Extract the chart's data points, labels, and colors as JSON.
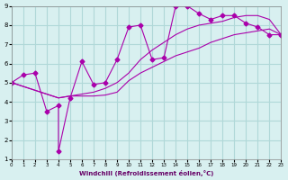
{
  "xlabel": "Windchill (Refroidissement éolien,°C)",
  "background_color": "#d8f0f0",
  "grid_color": "#b0d8d8",
  "line_color": "#aa00aa",
  "xlim": [
    0,
    23
  ],
  "ylim": [
    1,
    9
  ],
  "xticks": [
    0,
    1,
    2,
    3,
    4,
    5,
    6,
    7,
    8,
    9,
    10,
    11,
    12,
    13,
    14,
    15,
    16,
    17,
    18,
    19,
    20,
    21,
    22,
    23
  ],
  "yticks": [
    1,
    2,
    3,
    4,
    5,
    6,
    7,
    8,
    9
  ],
  "series": [
    {
      "x": [
        0,
        1,
        2,
        3,
        4,
        4,
        5,
        6,
        7,
        8,
        9,
        10,
        11,
        12,
        13,
        14,
        15,
        16,
        17,
        18,
        19,
        20,
        21,
        22,
        23
      ],
      "y": [
        5.0,
        5.4,
        5.5,
        3.5,
        3.8,
        1.4,
        4.2,
        6.1,
        4.9,
        5.0,
        6.2,
        7.9,
        8.0,
        6.2,
        6.3,
        9.0,
        9.0,
        8.6,
        8.3,
        8.5,
        8.5,
        8.1,
        7.9,
        7.5,
        7.5
      ],
      "marker": "D",
      "markersize": 2.5
    },
    {
      "x": [
        0,
        4,
        5,
        6,
        7,
        8,
        9,
        10,
        11,
        12,
        13,
        14,
        15,
        16,
        17,
        18,
        19,
        20,
        21,
        22,
        23
      ],
      "y": [
        5.0,
        4.2,
        4.3,
        4.3,
        4.3,
        4.35,
        4.5,
        5.1,
        5.5,
        5.8,
        6.1,
        6.4,
        6.6,
        6.8,
        7.1,
        7.3,
        7.5,
        7.6,
        7.7,
        7.8,
        7.5
      ],
      "marker": "",
      "markersize": 0
    },
    {
      "x": [
        0,
        4,
        5,
        6,
        7,
        8,
        9,
        10,
        11,
        12,
        13,
        14,
        15,
        16,
        17,
        18,
        19,
        20,
        21,
        22,
        23
      ],
      "y": [
        5.0,
        4.2,
        4.3,
        4.4,
        4.5,
        4.7,
        5.0,
        5.5,
        6.2,
        6.7,
        7.1,
        7.5,
        7.8,
        8.0,
        8.1,
        8.2,
        8.4,
        8.5,
        8.5,
        8.3,
        7.5
      ],
      "marker": "",
      "markersize": 0
    }
  ]
}
